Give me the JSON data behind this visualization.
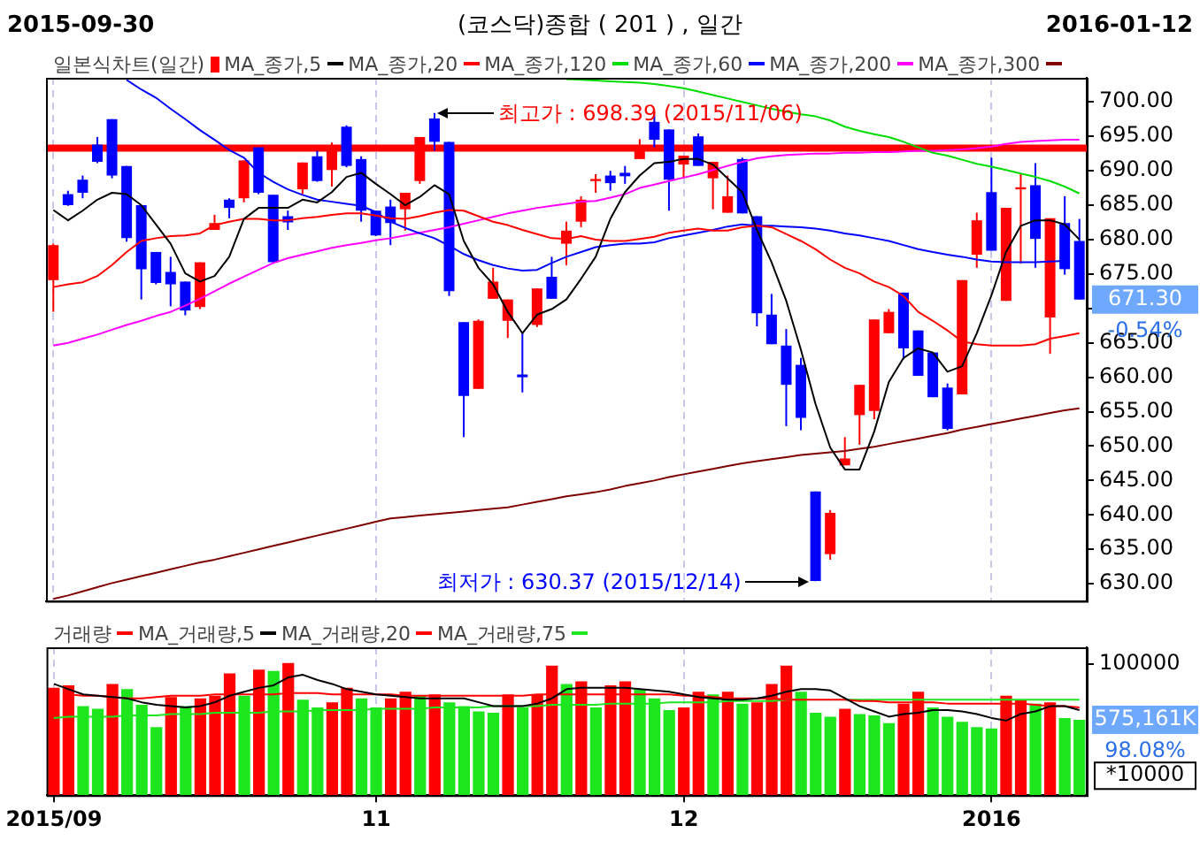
{
  "chart_data": [
    {
      "type": "candlestick",
      "title": "(코스닥)종합  ( 201 ) ,  일간",
      "categories": [
        "2015/09",
        null,
        null,
        null,
        null,
        null,
        null,
        null,
        null,
        null,
        null,
        null,
        null,
        null,
        null,
        null,
        null,
        null,
        null,
        null,
        null,
        null,
        "11",
        null,
        null,
        null,
        null,
        null,
        null,
        null,
        null,
        null,
        null,
        null,
        null,
        null,
        null,
        null,
        null,
        null,
        null,
        null,
        null,
        "12",
        null,
        null,
        null,
        null,
        null,
        null,
        null,
        null,
        null,
        null,
        null,
        null,
        null,
        null,
        null,
        null,
        null,
        null,
        null,
        null,
        "2016",
        null,
        null,
        null,
        null,
        null,
        null
      ],
      "series": [
        {
          "name": "일본식차트(일간)",
          "type": "candlestick",
          "color": "#ff0000",
          "colors": [
            "#ff0000",
            "#0000ff",
            "#0000ff",
            "#0000ff",
            "#0000ff",
            "#0000ff",
            "#0000ff",
            "#0000ff",
            "#0000ff",
            "#0000ff",
            "#ff0000",
            "#ff0000",
            "#0000ff",
            "#ff0000",
            "#0000ff",
            "#0000ff",
            "#0000ff",
            "#ff0000",
            "#0000ff",
            "#ff0000",
            "#0000ff",
            "#0000ff",
            "#0000ff",
            "#0000ff",
            "#ff0000",
            "#ff0000",
            "#0000ff",
            "#0000ff",
            "#0000ff",
            "#ff0000",
            "#ff0000",
            "#ff0000",
            "#0000ff",
            "#ff0000",
            "#0000ff",
            "#ff0000",
            "#ff0000",
            "#ff0000",
            "#0000ff",
            "#0000ff",
            "#ff0000",
            "#0000ff",
            "#0000ff",
            "#ff0000",
            "#0000ff",
            "#ff0000",
            "#ff0000",
            "#0000ff",
            "#0000ff",
            "#0000ff",
            "#0000ff",
            "#0000ff",
            "#0000ff",
            "#ff0000",
            "#ff0000",
            "#ff0000",
            "#ff0000",
            "#ff0000",
            "#0000ff",
            "#0000ff",
            "#0000ff",
            "#0000ff",
            "#ff0000",
            "#ff0000",
            "#0000ff",
            "#ff0000",
            "#ff0000",
            "#0000ff",
            "#ff0000",
            "#0000ff",
            "#0000ff"
          ],
          "ohlc": [
            [
              674.1,
              679.4,
              669.5,
              679.2
            ],
            [
              686.6,
              687.1,
              684.9,
              685.0
            ],
            [
              688.7,
              689.3,
              686.0,
              686.8
            ],
            [
              693.8,
              694.9,
              691.1,
              691.3
            ],
            [
              697.5,
              697.5,
              688.9,
              689.3
            ],
            [
              690.7,
              690.7,
              679.7,
              680.2
            ],
            [
              685.0,
              685.0,
              671.3,
              675.7
            ],
            [
              678.2,
              678.2,
              673.5,
              673.7
            ],
            [
              675.3,
              677.5,
              670.3,
              673.5
            ],
            [
              673.9,
              673.9,
              669.0,
              669.7
            ],
            [
              670.2,
              676.7,
              669.9,
              676.7
            ],
            [
              681.4,
              683.6,
              681.4,
              682.4
            ],
            [
              685.8,
              686.0,
              683.1,
              684.6
            ],
            [
              686.0,
              691.5,
              685.4,
              691.5
            ],
            [
              693.4,
              693.4,
              686.6,
              686.8
            ],
            [
              686.5,
              686.5,
              676.5,
              676.7
            ],
            [
              683.4,
              684.2,
              681.4,
              682.5
            ],
            [
              687.3,
              691.2,
              686.6,
              691.2
            ],
            [
              692.1,
              692.9,
              688.4,
              688.5
            ],
            [
              690.1,
              694.1,
              687.7,
              693.7
            ],
            [
              696.4,
              696.6,
              690.5,
              690.7
            ],
            [
              691.7,
              692.1,
              682.6,
              684.2
            ],
            [
              684.2,
              684.2,
              680.5,
              680.6
            ],
            [
              684.8,
              685.8,
              679.2,
              682.4
            ],
            [
              684.4,
              686.8,
              681.3,
              686.8
            ],
            [
              688.5,
              694.9,
              688.1,
              694.9
            ],
            [
              697.6,
              698.39,
              692.9,
              694.2
            ],
            [
              694.2,
              694.2,
              671.8,
              672.5
            ],
            [
              668.0,
              668.0,
              651.3,
              657.3
            ],
            [
              658.3,
              668.4,
              658.3,
              668.2
            ],
            [
              671.4,
              675.9,
              671.4,
              673.9
            ],
            [
              668.2,
              671.3,
              665.7,
              671.3
            ],
            [
              660.4,
              666.4,
              657.8,
              660.0
            ],
            [
              667.6,
              672.9,
              667.3,
              672.9
            ],
            [
              674.6,
              677.5,
              671.4,
              671.4
            ],
            [
              679.4,
              682.6,
              676.3,
              681.3
            ],
            [
              682.6,
              686.3,
              681.8,
              685.8
            ],
            [
              688.5,
              689.5,
              686.8,
              688.8
            ],
            [
              689.3,
              690.0,
              687.1,
              688.2
            ],
            [
              689.7,
              690.7,
              688.1,
              689.2
            ],
            [
              691.7,
              694.6,
              691.7,
              693.4
            ],
            [
              697.1,
              698.2,
              693.4,
              694.5
            ],
            [
              696.0,
              696.0,
              684.2,
              688.7
            ],
            [
              690.9,
              692.2,
              688.9,
              692.2
            ],
            [
              695.0,
              695.4,
              690.7,
              690.7
            ],
            [
              688.9,
              691.3,
              684.4,
              691.3
            ],
            [
              683.9,
              689.3,
              683.9,
              686.3
            ],
            [
              691.7,
              691.9,
              683.8,
              683.8
            ],
            [
              683.4,
              683.4,
              667.4,
              669.3
            ],
            [
              669.1,
              672.1,
              664.8,
              664.8
            ],
            [
              664.6,
              667.0,
              652.9,
              658.9
            ],
            [
              661.8,
              662.8,
              652.3,
              654.1
            ],
            [
              643.4,
              643.4,
              630.37,
              630.4
            ],
            [
              634.3,
              640.7,
              633.5,
              640.3
            ],
            [
              647.2,
              651.3,
              647.2,
              648.2
            ],
            [
              654.5,
              658.9,
              650.2,
              658.9
            ],
            [
              655.1,
              668.4,
              653.9,
              668.4
            ],
            [
              666.4,
              669.9,
              666.4,
              669.5
            ],
            [
              672.3,
              672.3,
              662.6,
              664.2
            ],
            [
              666.8,
              666.8,
              660.2,
              660.2
            ],
            [
              663.6,
              663.6,
              657.1,
              657.1
            ],
            [
              658.5,
              659.1,
              652.3,
              652.5
            ],
            [
              657.5,
              674.1,
              657.5,
              674.1
            ],
            [
              677.8,
              683.9,
              675.9,
              682.8
            ],
            [
              686.9,
              691.9,
              678.4,
              678.4
            ],
            [
              671.1,
              684.6,
              671.1,
              684.6
            ],
            [
              687.3,
              689.5,
              676.5,
              687.6
            ],
            [
              687.9,
              691.1,
              675.9,
              680.1
            ],
            [
              668.7,
              683.1,
              663.4,
              683.1
            ],
            [
              682.4,
              686.3,
              674.9,
              675.7
            ],
            [
              679.8,
              683.0,
              671.3,
              671.3
            ]
          ]
        },
        {
          "name": "MA_종가,5",
          "type": "line",
          "color": "#000000",
          "values": [
            684.3,
            682.8,
            684.2,
            685.8,
            686.8,
            686.6,
            685.0,
            682.2,
            679.4,
            675.1,
            673.9,
            674.7,
            677.5,
            683.0,
            684.6,
            684.6,
            684.6,
            685.8,
            685.4,
            686.9,
            689.1,
            689.7,
            688.1,
            686.6,
            685.0,
            686.2,
            687.9,
            686.6,
            679.8,
            675.9,
            673.5,
            669.5,
            666.4,
            669.1,
            669.9,
            671.3,
            674.3,
            677.5,
            683.0,
            686.9,
            689.3,
            691.1,
            691.3,
            691.7,
            691.7,
            690.9,
            688.9,
            686.9,
            681.4,
            676.7,
            671.1,
            664.0,
            656.1,
            649.8,
            646.6,
            646.6,
            652.1,
            659.3,
            662.8,
            664.2,
            663.6,
            660.8,
            661.6,
            666.4,
            671.9,
            678.2,
            682.0,
            682.8,
            682.8,
            682.2,
            680.0
          ]
        },
        {
          "name": "MA_종가,20",
          "type": "line",
          "color": "#ff0000",
          "values": [
            673.1,
            673.5,
            673.8,
            674.7,
            676.3,
            678.2,
            679.8,
            680.2,
            680.5,
            680.6,
            680.9,
            682.1,
            682.6,
            683.0,
            683.0,
            682.8,
            682.8,
            683.1,
            683.3,
            683.6,
            683.8,
            683.8,
            683.5,
            683.1,
            683.0,
            683.4,
            683.9,
            684.3,
            684.2,
            683.4,
            682.6,
            682.1,
            681.4,
            680.8,
            680.2,
            680.1,
            680.5,
            680.0,
            679.8,
            679.8,
            680.1,
            680.4,
            681.0,
            681.3,
            681.6,
            681.3,
            681.3,
            681.8,
            682.0,
            681.8,
            680.8,
            679.8,
            678.6,
            677.1,
            675.9,
            675.1,
            673.9,
            673.1,
            671.8,
            669.5,
            668.2,
            666.8,
            665.2,
            664.8,
            664.6,
            664.6,
            664.6,
            664.8,
            665.6,
            666.0,
            666.4
          ]
        },
        {
          "name": "MA_종가,120",
          "type": "line",
          "color": "#00dd00",
          "values": [
            null,
            null,
            null,
            null,
            null,
            null,
            null,
            null,
            null,
            null,
            null,
            null,
            null,
            null,
            null,
            null,
            null,
            null,
            null,
            null,
            null,
            null,
            null,
            null,
            null,
            null,
            null,
            null,
            null,
            null,
            null,
            null,
            null,
            null,
            null,
            703.3,
            703.2,
            703.1,
            703.0,
            702.9,
            702.8,
            702.6,
            702.3,
            702.0,
            701.5,
            701.0,
            700.5,
            700.0,
            699.5,
            699.0,
            698.6,
            698.2,
            697.9,
            697.3,
            696.4,
            695.8,
            695.3,
            694.9,
            694.2,
            693.4,
            692.6,
            692.2,
            691.6,
            691.0,
            690.6,
            690.1,
            689.6,
            689.1,
            688.5,
            687.7,
            686.7
          ]
        },
        {
          "name": "MA_종가,60",
          "type": "line",
          "color": "#0000ff",
          "values": [
            null,
            null,
            null,
            null,
            null,
            703.2,
            701.8,
            700.6,
            699.0,
            697.5,
            695.9,
            694.5,
            693.0,
            691.9,
            689.7,
            688.4,
            687.3,
            686.5,
            685.8,
            685.5,
            685.2,
            684.9,
            684.0,
            682.6,
            681.7,
            680.9,
            680.2,
            679.1,
            677.9,
            677.0,
            676.3,
            675.8,
            675.5,
            675.6,
            676.6,
            677.5,
            678.2,
            678.9,
            679.2,
            679.4,
            679.4,
            679.6,
            680.2,
            680.6,
            681.0,
            681.4,
            681.9,
            682.2,
            682.0,
            682.0,
            681.9,
            681.8,
            681.6,
            681.3,
            680.9,
            680.6,
            680.2,
            679.8,
            679.2,
            678.6,
            678.2,
            677.8,
            677.5,
            677.1,
            676.8,
            676.7,
            676.7,
            676.7,
            676.8,
            676.9,
            null
          ]
        },
        {
          "name": "MA_종가,200",
          "type": "line",
          "color": "#ff00ff",
          "values": [
            664.6,
            665.0,
            665.6,
            666.2,
            666.9,
            667.6,
            668.2,
            668.9,
            669.5,
            670.4,
            671.4,
            672.5,
            673.6,
            674.6,
            675.6,
            676.6,
            677.3,
            677.8,
            678.3,
            678.8,
            679.2,
            679.5,
            679.9,
            680.2,
            680.6,
            681.0,
            681.4,
            681.8,
            682.3,
            682.8,
            683.3,
            683.8,
            684.2,
            684.6,
            684.9,
            685.2,
            685.5,
            685.6,
            686.1,
            686.6,
            687.5,
            688.0,
            688.5,
            689.0,
            689.5,
            690.1,
            690.7,
            691.3,
            691.8,
            692.1,
            692.3,
            692.4,
            692.5,
            692.5,
            692.6,
            692.6,
            692.7,
            692.7,
            692.8,
            692.9,
            692.9,
            693.0,
            693.1,
            693.3,
            693.5,
            693.9,
            694.2,
            694.3,
            694.4,
            694.5,
            694.5
          ]
        },
        {
          "name": "MA_종가,300",
          "type": "line",
          "color": "#800000",
          "values": [
            627.8,
            628.3,
            628.9,
            629.5,
            630.1,
            630.6,
            631.1,
            631.6,
            632.1,
            632.6,
            633.1,
            633.5,
            634.0,
            634.5,
            635.0,
            635.5,
            636.0,
            636.5,
            637.0,
            637.5,
            638.0,
            638.5,
            639.0,
            639.5,
            639.7,
            639.9,
            640.1,
            640.3,
            640.5,
            640.7,
            640.9,
            641.1,
            641.5,
            641.9,
            642.3,
            642.7,
            643.0,
            643.3,
            643.7,
            644.2,
            644.6,
            645.0,
            645.5,
            645.9,
            646.3,
            646.7,
            647.1,
            647.5,
            647.8,
            648.1,
            648.4,
            648.7,
            648.9,
            649.1,
            649.3,
            649.6,
            649.9,
            650.3,
            650.7,
            651.1,
            651.5,
            651.9,
            652.4,
            652.8,
            653.2,
            653.6,
            654.0,
            654.4,
            654.8,
            655.2,
            655.5
          ]
        }
      ],
      "ylim": [
        627.5,
        703.5
      ],
      "yticks": [
        {
          "value": 630,
          "label": "630.00"
        },
        {
          "value": 635,
          "label": "635.00"
        },
        {
          "value": 640,
          "label": "640.00"
        },
        {
          "value": 645,
          "label": "645.00"
        },
        {
          "value": 650,
          "label": "650.00"
        },
        {
          "value": 655,
          "label": "655.00"
        },
        {
          "value": 660,
          "label": "660.00"
        },
        {
          "value": 665,
          "label": "665.00"
        },
        {
          "value": 670,
          "label": null
        },
        {
          "value": 675,
          "label": "675.00"
        },
        {
          "value": 680,
          "label": "680.00"
        },
        {
          "value": 685,
          "label": "685.00"
        },
        {
          "value": 690,
          "label": "690.00"
        },
        {
          "value": 695,
          "label": "695.00"
        },
        {
          "value": 700,
          "label": "700.00"
        }
      ],
      "ref_lines": [
        {
          "axis": "y",
          "value": 693.3,
          "color": "#ff0000"
        }
      ],
      "annotations": [
        "2015-09-30",
        "2016-01-12",
        "최고가 : 698.39 (2015/11/06)",
        "최저가 : 630.37 (2015/12/14)",
        "671.30",
        "-0.54%"
      ],
      "grid": "x",
      "legend": "top left",
      "tick_labels": "y",
      "marker": "none"
    },
    {
      "type": "bar",
      "ylabel": "*10000",
      "categories": [
        "2015/09",
        null,
        null,
        null,
        null,
        null,
        null,
        null,
        null,
        null,
        null,
        null,
        null,
        null,
        null,
        null,
        null,
        null,
        null,
        null,
        null,
        null,
        "11",
        null,
        null,
        null,
        null,
        null,
        null,
        null,
        null,
        null,
        null,
        null,
        null,
        null,
        null,
        null,
        null,
        null,
        null,
        null,
        null,
        "12",
        null,
        null,
        null,
        null,
        null,
        null,
        null,
        null,
        null,
        null,
        null,
        null,
        null,
        null,
        null,
        null,
        null,
        null,
        null,
        null,
        "2016",
        null,
        null,
        null,
        null,
        null,
        null
      ],
      "series": [
        {
          "name": "거래량",
          "type": "bar",
          "color": "#ff0000",
          "colors": [
            "#ff0000",
            "#ff0000",
            "#1ee61e",
            "#1ee61e",
            "#ff0000",
            "#1ee61e",
            "#1ee61e",
            "#1ee61e",
            "#ff0000",
            "#1ee61e",
            "#ff0000",
            "#ff0000",
            "#ff0000",
            "#1ee61e",
            "#ff0000",
            "#1ee61e",
            "#ff0000",
            "#1ee61e",
            "#1ee61e",
            "#ff0000",
            "#ff0000",
            "#1ee61e",
            "#1ee61e",
            "#ff0000",
            "#ff0000",
            "#1ee61e",
            "#ff0000",
            "#1ee61e",
            "#1ee61e",
            "#1ee61e",
            "#1ee61e",
            "#ff0000",
            "#1ee61e",
            "#ff0000",
            "#ff0000",
            "#1ee61e",
            "#ff0000",
            "#1ee61e",
            "#ff0000",
            "#ff0000",
            "#1ee61e",
            "#1ee61e",
            "#1ee61e",
            "#ff0000",
            "#ff0000",
            "#1ee61e",
            "#ff0000",
            "#1ee61e",
            "#ff0000",
            "#ff0000",
            "#ff0000",
            "#1ee61e",
            "#1ee61e",
            "#1ee61e",
            "#ff0000",
            "#1ee61e",
            "#1ee61e",
            "#1ee61e",
            "#ff0000",
            "#ff0000",
            "#1ee61e",
            "#1ee61e",
            "#1ee61e",
            "#1ee61e",
            "#1ee61e",
            "#ff0000",
            "#ff0000",
            "#1ee61e",
            "#ff0000",
            "#1ee61e",
            "#1ee61e"
          ],
          "values": [
            82000,
            84000,
            68000,
            66000,
            85000,
            81000,
            69000,
            52000,
            75000,
            68000,
            74000,
            76000,
            93000,
            76000,
            96000,
            95000,
            101000,
            73000,
            67000,
            71000,
            82000,
            74000,
            67000,
            74000,
            79000,
            76000,
            77000,
            71000,
            68000,
            64000,
            63000,
            77000,
            67000,
            77000,
            99000,
            85000,
            87000,
            67000,
            84000,
            87000,
            81000,
            74000,
            65000,
            67000,
            79000,
            77000,
            79000,
            70000,
            71000,
            85000,
            99000,
            79000,
            63000,
            60000,
            66000,
            62000,
            61000,
            55000,
            70000,
            79000,
            67000,
            60000,
            56000,
            52000,
            51000,
            76000,
            73000,
            70000,
            71000,
            59000,
            57516.1
          ]
        },
        {
          "name": "MA_거래량,5",
          "type": "line",
          "color": "#000000",
          "values": [
            85000,
            81000,
            77000,
            76000,
            75000,
            74000,
            71000,
            69000,
            68000,
            67000,
            68000,
            71000,
            76000,
            79000,
            82000,
            84000,
            90000,
            92000,
            88000,
            85000,
            81000,
            79000,
            77000,
            76000,
            75000,
            74000,
            74000,
            74000,
            74000,
            71000,
            68000,
            68000,
            68000,
            70000,
            74000,
            81000,
            82000,
            82000,
            82000,
            82000,
            81000,
            80000,
            79000,
            77000,
            75000,
            74000,
            73000,
            73000,
            74000,
            76000,
            79000,
            81000,
            81000,
            80000,
            74000,
            68000,
            64000,
            60000,
            62000,
            63000,
            65000,
            65000,
            64000,
            62000,
            59000,
            57000,
            62000,
            64000,
            68000,
            68000,
            65000
          ]
        },
        {
          "name": "MA_거래량,20",
          "type": "line",
          "color": "#ff0000",
          "values": [
            null,
            77000,
            76000,
            76000,
            75000,
            74000,
            74000,
            75000,
            76000,
            76000,
            76000,
            77000,
            77000,
            77000,
            77000,
            77000,
            78000,
            78000,
            78000,
            77000,
            77000,
            77000,
            77000,
            77000,
            76000,
            76000,
            76000,
            76000,
            76000,
            76000,
            76000,
            76000,
            76000,
            77000,
            77000,
            77000,
            77000,
            77000,
            77000,
            77000,
            77000,
            77000,
            77000,
            76000,
            76000,
            75000,
            74000,
            74000,
            74000,
            74000,
            73000,
            73000,
            73000,
            73000,
            73000,
            72000,
            72000,
            71000,
            71000,
            71000,
            71000,
            70000,
            70000,
            70000,
            70000,
            70000,
            70000,
            69000,
            68000,
            68000,
            67000
          ]
        },
        {
          "name": "MA_거래량,75",
          "type": "line",
          "color": "#1ee61e",
          "values": [
            59000,
            60000,
            60000,
            60000,
            60000,
            61000,
            61000,
            61000,
            62000,
            62000,
            62000,
            63000,
            63000,
            63000,
            63000,
            64000,
            64000,
            64000,
            65000,
            65000,
            65000,
            65000,
            66000,
            66000,
            66000,
            66000,
            67000,
            67000,
            67000,
            67000,
            68000,
            68000,
            68000,
            68000,
            69000,
            69000,
            69000,
            69000,
            70000,
            70000,
            70000,
            70000,
            71000,
            71000,
            71000,
            71000,
            72000,
            72000,
            72000,
            72000,
            73000,
            73000,
            null,
            null,
            73000,
            73000,
            73000,
            73000,
            73000,
            73000,
            73000,
            73000,
            73000,
            73000,
            73000,
            73000,
            73000,
            73000,
            73000,
            73000,
            73000
          ]
        }
      ],
      "ylim": [
        0,
        113000
      ],
      "yticks": [
        100000
      ],
      "annotations": [
        "575,161K",
        "98.08%"
      ],
      "grid": "x",
      "legend": "top left",
      "marker": "none"
    }
  ]
}
